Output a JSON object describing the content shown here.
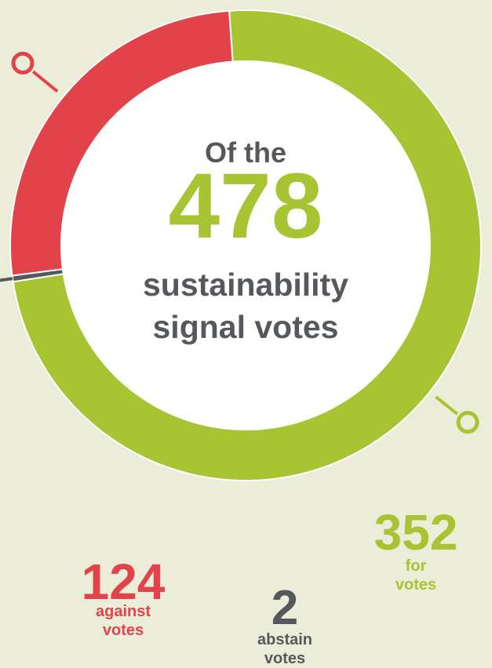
{
  "chart_data": {
    "type": "pie",
    "variant": "donut",
    "center_text": {
      "line1": "Of the",
      "total": "478",
      "line2": "sustainability",
      "line3": "signal votes"
    },
    "total": 478,
    "start_angle_deg": 266,
    "slices": [
      {
        "key": "for",
        "value": 352,
        "value_label": "352",
        "label_line1": "for",
        "label_line2": "votes",
        "color": "#a8c432"
      },
      {
        "key": "abstain",
        "value": 2,
        "value_label": "2",
        "label_line1": "abstain",
        "label_line2": "votes",
        "color": "#55585c"
      },
      {
        "key": "against",
        "value": 124,
        "value_label": "124",
        "label_line1": "against",
        "label_line2": "votes",
        "color": "#e2434b"
      }
    ]
  },
  "colors": {
    "background": "#ebedd8",
    "center_fill": "#ffffff",
    "center_text": "#55585c",
    "total_text": "#a8c432"
  }
}
